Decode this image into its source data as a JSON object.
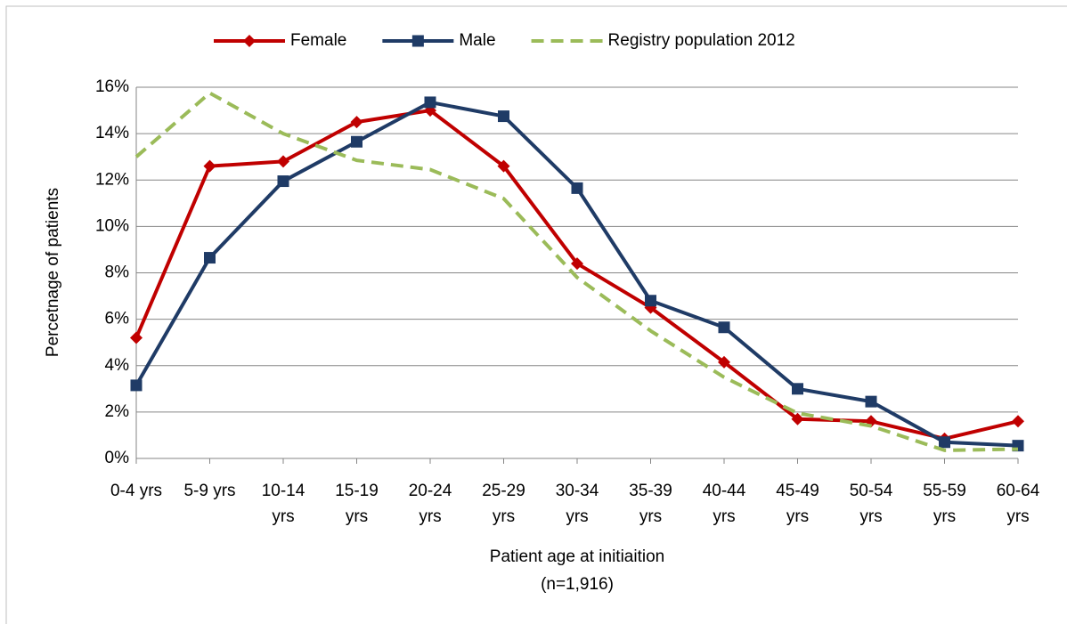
{
  "chart_data": {
    "type": "line",
    "ylabel": "Percetnage of patients",
    "xlabel": "Patient age at initiaition",
    "xlabel_note": "(n=1,916)",
    "categories": [
      "0-4 yrs",
      "5-9 yrs",
      "10-14 yrs",
      "15-19 yrs",
      "20-24 yrs",
      "25-29 yrs",
      "30-34 yrs",
      "35-39 yrs",
      "40-44 yrs",
      "45-49 yrs",
      "50-54 yrs",
      "55-59 yrs",
      "60-64 yrs"
    ],
    "series": [
      {
        "name": "Female",
        "color": "#c00000",
        "marker": "diamond",
        "dashed": false,
        "values": [
          5.2,
          12.6,
          12.8,
          14.5,
          15.0,
          12.6,
          8.4,
          6.5,
          4.15,
          1.7,
          1.6,
          0.85,
          1.6
        ]
      },
      {
        "name": "Male",
        "color": "#1f3b66",
        "marker": "square",
        "dashed": false,
        "values": [
          3.15,
          8.65,
          11.95,
          13.65,
          15.35,
          14.75,
          11.65,
          6.8,
          5.65,
          3.0,
          2.45,
          0.7,
          0.55
        ]
      },
      {
        "name": "Registry population 2012",
        "color": "#9bbb59",
        "marker": "none",
        "dashed": true,
        "values": [
          13.0,
          15.75,
          14.0,
          12.85,
          12.45,
          11.2,
          7.8,
          5.5,
          3.5,
          1.95,
          1.4,
          0.35,
          0.4
        ]
      }
    ],
    "ylim": [
      0,
      16
    ],
    "yticks": [
      {
        "value": 0,
        "label": "0%"
      },
      {
        "value": 2,
        "label": "2%"
      },
      {
        "value": 4,
        "label": "4%"
      },
      {
        "value": 6,
        "label": "6%"
      },
      {
        "value": 8,
        "label": "8%"
      },
      {
        "value": 10,
        "label": "10%"
      },
      {
        "value": 12,
        "label": "12%"
      },
      {
        "value": 14,
        "label": "14%"
      },
      {
        "value": 16,
        "label": "16%"
      }
    ],
    "grid": true,
    "legend": "top"
  }
}
